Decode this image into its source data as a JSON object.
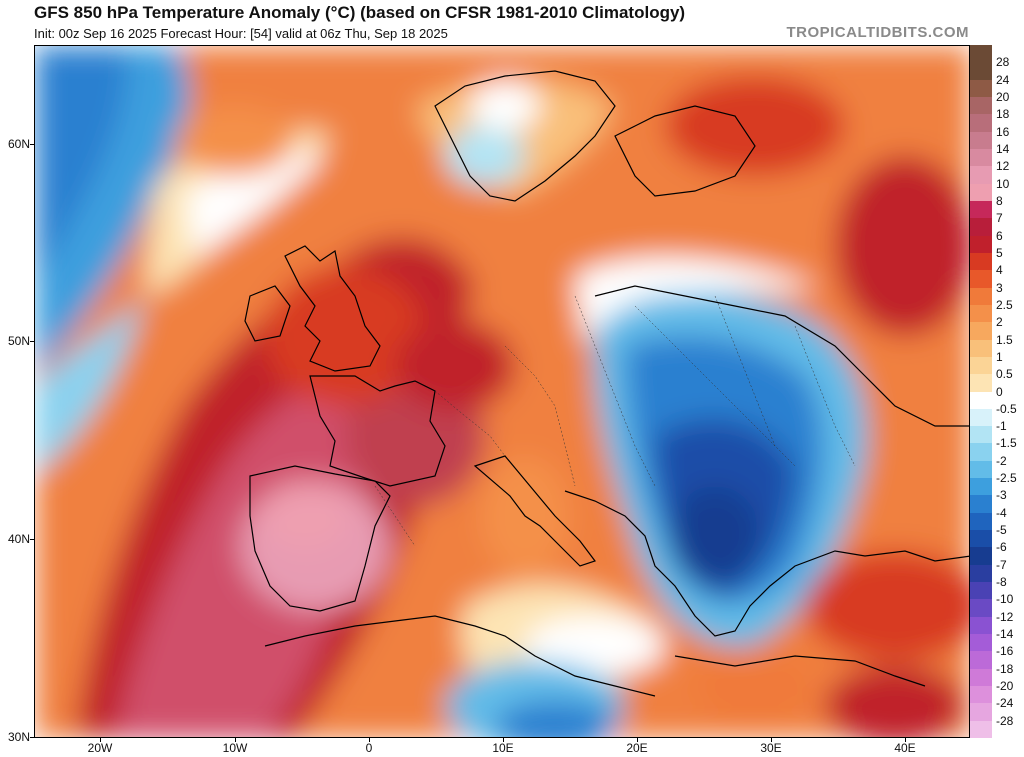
{
  "header": {
    "title": "GFS 850 hPa Temperature Anomaly (°C) (based on CFSR 1981-2010 Climatology)",
    "subtitle": "Init: 00z Sep 16 2025   Forecast Hour: [54]   valid at 06z Thu, Sep 18 2025",
    "credit": "TROPICALTIDBITS.COM"
  },
  "axes": {
    "lat_labels": [
      "60N",
      "50N",
      "40N",
      "30N"
    ],
    "lon_labels": [
      "20W",
      "10W",
      "0",
      "10E",
      "20E",
      "30E",
      "40E"
    ]
  },
  "colorbar": {
    "labels": [
      "28",
      "24",
      "20",
      "18",
      "16",
      "14",
      "12",
      "10",
      "8",
      "7",
      "6",
      "5",
      "4",
      "3",
      "2.5",
      "2",
      "1.5",
      "1",
      "0.5",
      "0",
      "-0.5",
      "-1",
      "-1.5",
      "-2",
      "-2.5",
      "-3",
      "-4",
      "-5",
      "-6",
      "-7",
      "-8",
      "-10",
      "-12",
      "-14",
      "-16",
      "-18",
      "-20",
      "-24",
      "-28"
    ],
    "colors": [
      "#6b4a35",
      "#8e5a45",
      "#a86565",
      "#b86e7a",
      "#c87c8e",
      "#d88aa0",
      "#e79bb2",
      "#ee9fb0",
      "#c6285a",
      "#b81e3a",
      "#c0202c",
      "#d83a22",
      "#e8582a",
      "#f07a3a",
      "#f4904a",
      "#f7a85e",
      "#f9c07a",
      "#fbd496",
      "#fde4b4",
      "#ffffff",
      "#d8f2fa",
      "#b2e4f4",
      "#8ad2ef",
      "#62bce8",
      "#3d9fde",
      "#2a80d0",
      "#1f64be",
      "#1a4ea8",
      "#173c90",
      "#2a3ea0",
      "#4a42b4",
      "#6a4ac4",
      "#8a52d2",
      "#a45cd8",
      "#bc6ad8",
      "#cf7ad8",
      "#dd90dc",
      "#e6a6e0",
      "#efbfe8"
    ]
  }
}
